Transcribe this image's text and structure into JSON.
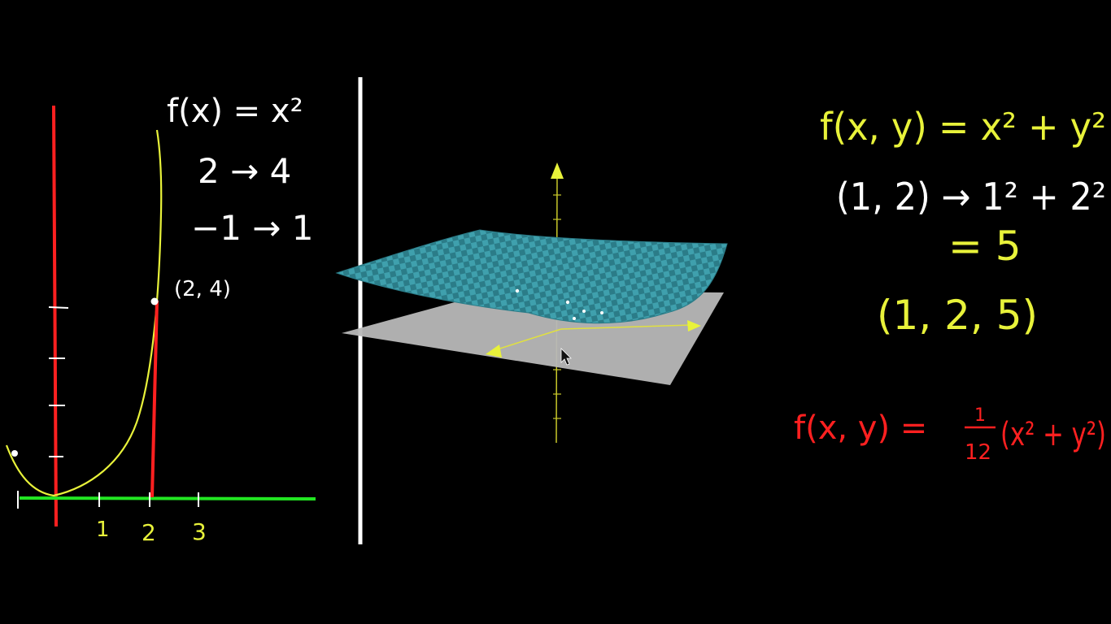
{
  "colors": {
    "background": "#000000",
    "chalk_white": "#ffffff",
    "chalk_yellow": "#e8f23a",
    "chalk_red": "#ff2020",
    "axis_green": "#22e622",
    "surface_teal": "#3fa0ad",
    "plane_gray": "#b8b8b8"
  },
  "left_panel": {
    "formula": "f(x) = x²",
    "map_1": "2 → 4",
    "map_2": "−1 → 1",
    "point_label": "(2, 4)",
    "x_ticks": [
      "1",
      "2",
      "3"
    ]
  },
  "viewer_3d": {
    "surface": "paraboloid",
    "cursor_icon": "arrow-cursor-icon"
  },
  "right_panel": {
    "formula_main": "f(x, y) = x² + y²",
    "eval_line": "(1, 2) → 1² + 2²",
    "equals_line": "= 5",
    "point_line": "(1, 2, 5)",
    "formula_scaled_lhs": "f(x, y) =",
    "formula_scaled_num": "1",
    "formula_scaled_den": "12",
    "formula_scaled_rhs": "(x² + y²)"
  }
}
